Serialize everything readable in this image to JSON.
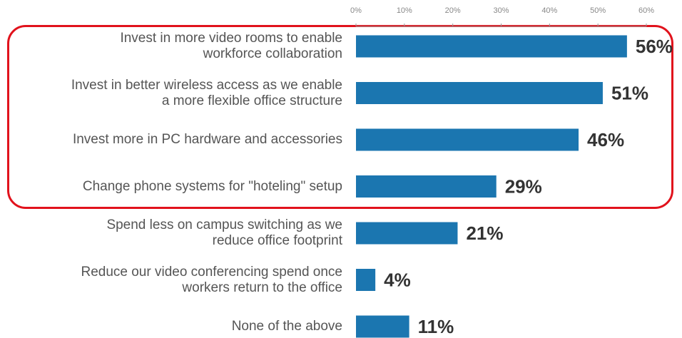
{
  "chart_data": {
    "type": "bar",
    "orientation": "horizontal",
    "categories": [
      "Invest in more video rooms to enable\nworkforce collaboration",
      "Invest in better wireless access as we enable\na more flexible office structure",
      "Invest more in PC hardware and accessories",
      "Change phone systems for \"hoteling\" setup",
      "Spend less on campus switching as we\nreduce office footprint",
      "Reduce our video conferencing spend once\nworkers return to the office",
      "None of the above"
    ],
    "values": [
      56,
      51,
      46,
      29,
      21,
      4,
      11
    ],
    "value_labels": [
      "56%",
      "51%",
      "46%",
      "29%",
      "21%",
      "4%",
      "11%"
    ],
    "xlim": [
      0,
      60
    ],
    "x_ticks": [
      "0%",
      "10%",
      "20%",
      "30%",
      "40%",
      "50%",
      "60%"
    ],
    "x_axis_position": "top",
    "highlighted_categories": [
      0,
      1,
      2,
      3
    ],
    "grid": false,
    "legend": "none"
  },
  "colors": {
    "bar": "#1b76b0",
    "highlight_border": "#e1121c",
    "label_text": "#555555",
    "value_text": "#333333",
    "tick_text": "#888888",
    "axis_line": "#999999"
  }
}
